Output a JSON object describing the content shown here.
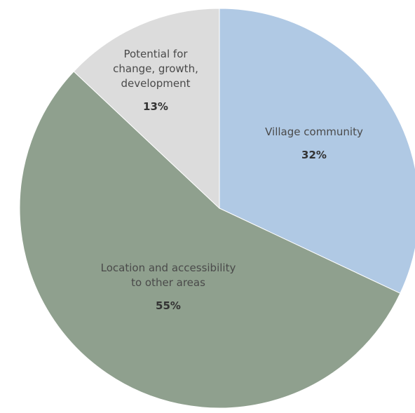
{
  "chart_data": {
    "type": "pie",
    "start": "12 o'clock",
    "direction": "clockwise",
    "slices": [
      {
        "name": "Village community",
        "label_lines": [
          "Village community"
        ],
        "value": 32,
        "value_label": "32%",
        "color": "#b0c9e4"
      },
      {
        "name": "Location and accessibility to other areas",
        "label_lines": [
          "Location and accessibility",
          "to other areas"
        ],
        "value": 55,
        "value_label": "55%",
        "color": "#8fa08e"
      },
      {
        "name": "Potential for change, growth, development",
        "label_lines": [
          "Potential for",
          "change, growth,",
          "development"
        ],
        "value": 13,
        "value_label": "13%",
        "color": "#dcdcdc"
      }
    ]
  }
}
